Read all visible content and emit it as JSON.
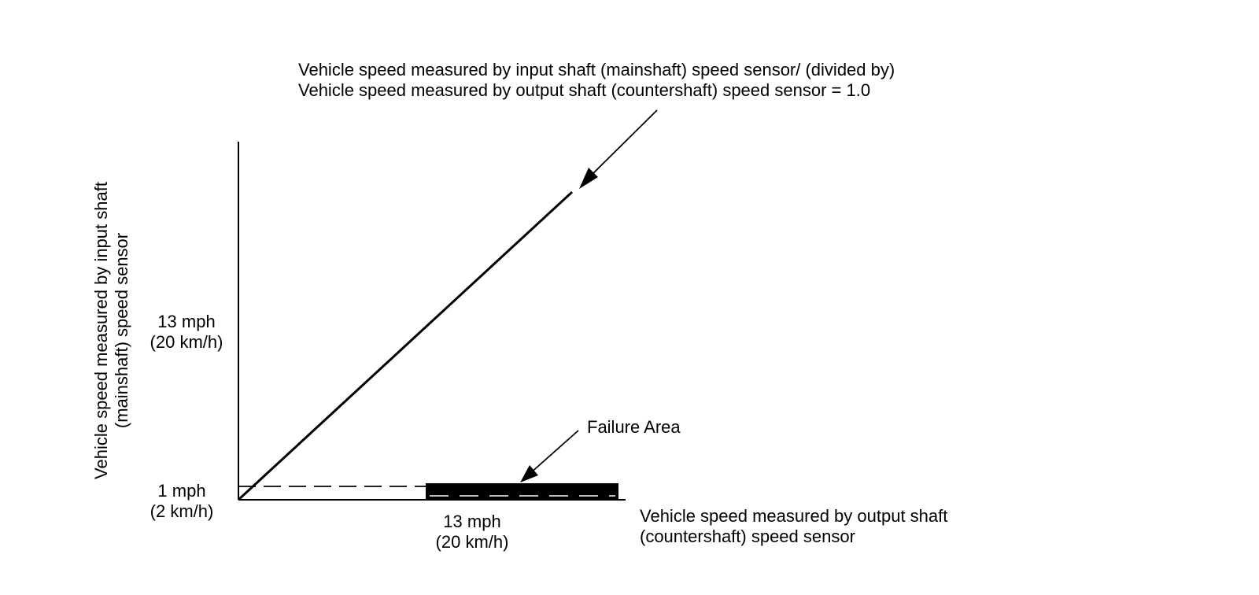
{
  "annotations": {
    "ratio_line_label": {
      "line1": "Vehicle speed measured by input shaft (mainshaft) speed sensor/ (divided by)",
      "line2": "Vehicle speed measured by output shaft (countershaft) speed sensor = 1.0"
    },
    "failure_area_label": "Failure Area"
  },
  "y_axis": {
    "title_line1": "Vehicle speed measured by input shaft",
    "title_line2": "(mainshaft) speed sensor",
    "ticks": [
      {
        "line1": "13 mph",
        "line2": "(20 km/h)"
      },
      {
        "line1": "1 mph",
        "line2": "(2 km/h)"
      }
    ]
  },
  "x_axis": {
    "title_line1": "Vehicle speed measured by output shaft",
    "title_line2": "(countershaft) speed sensor",
    "tick": {
      "line1": "13 mph",
      "line2": "(20 km/h)"
    }
  },
  "colors": {
    "ink": "#000000",
    "background": "#ffffff"
  }
}
